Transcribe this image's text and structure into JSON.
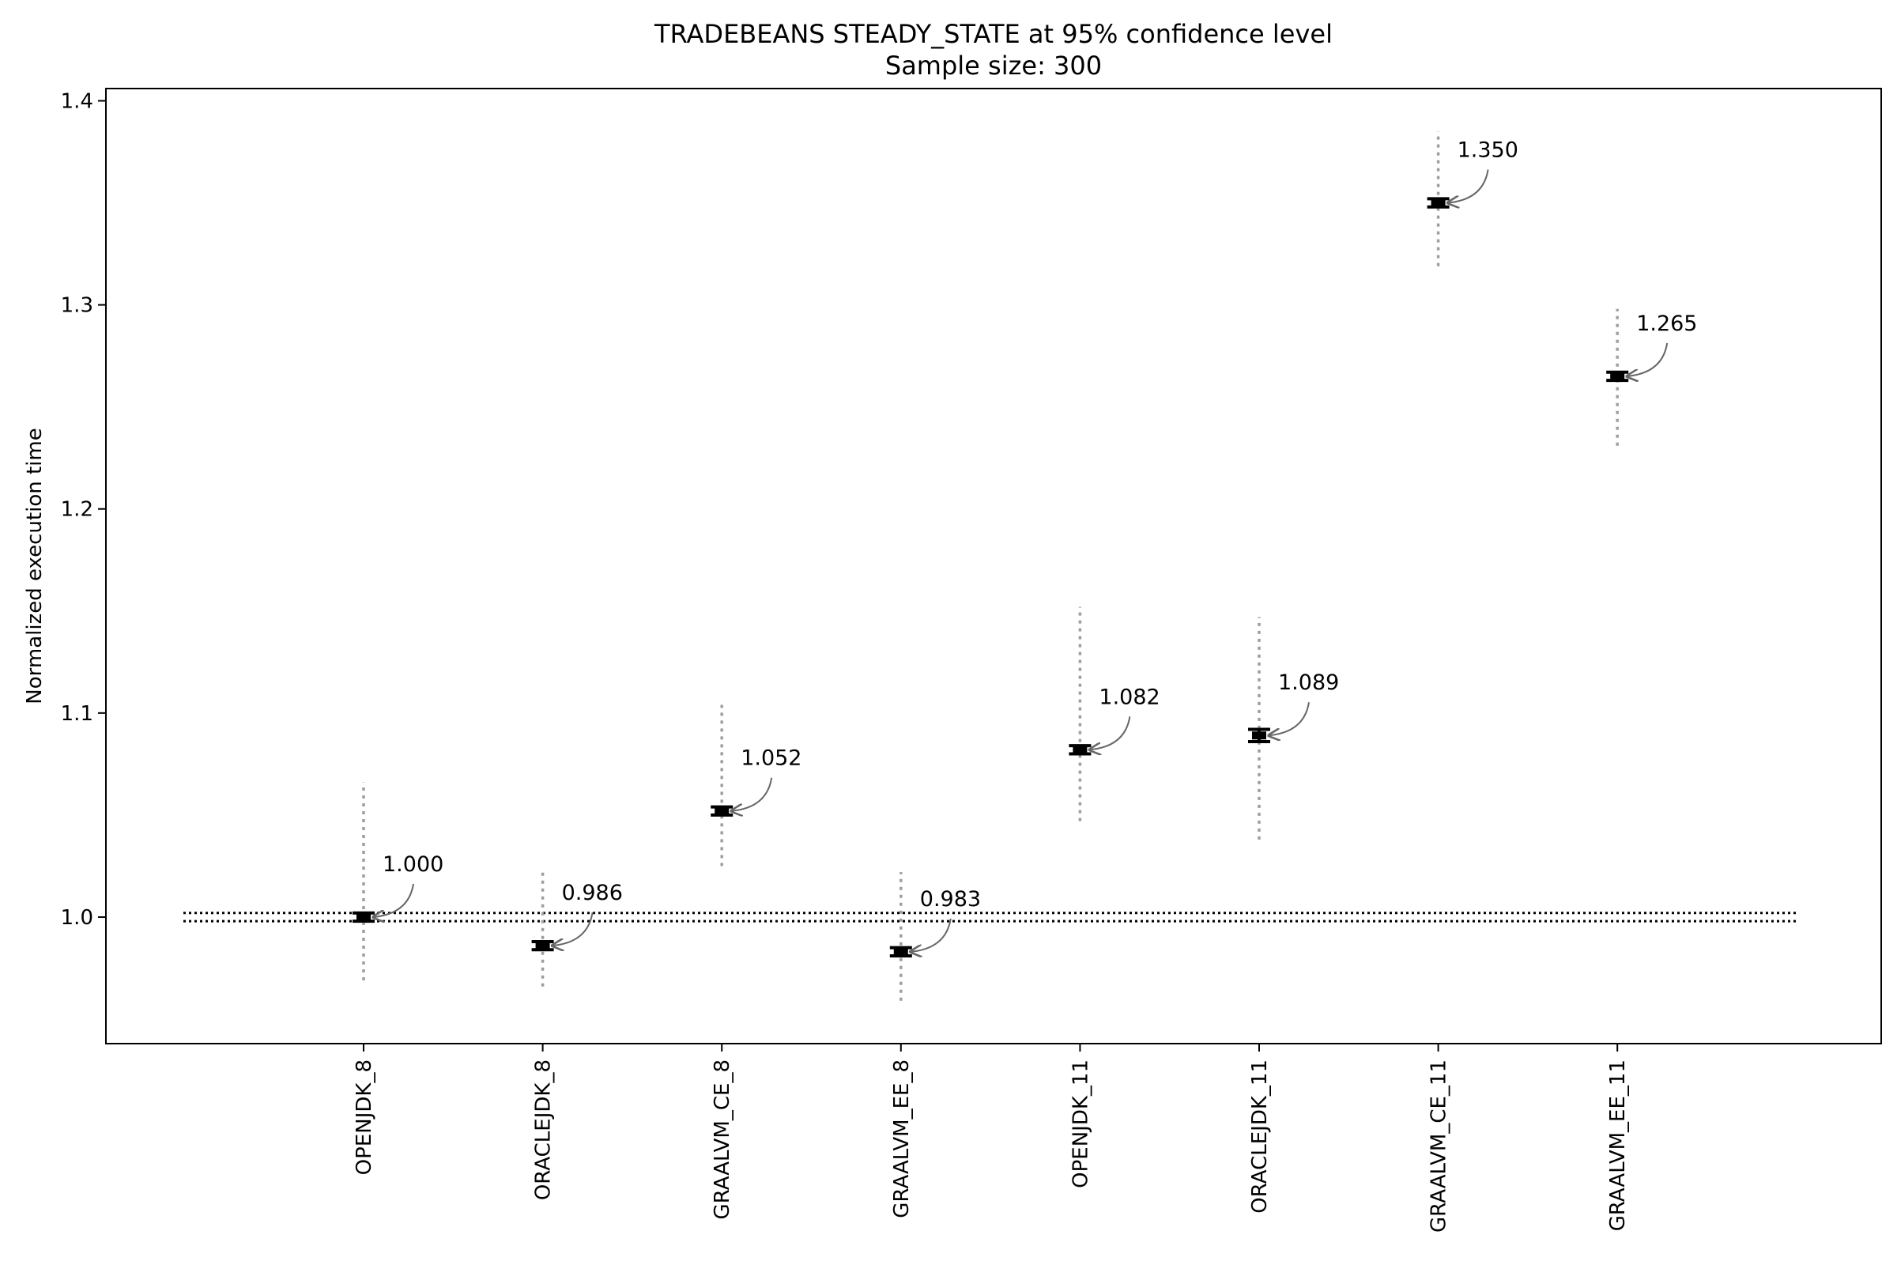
{
  "chart_data": {
    "type": "scatter",
    "title": "TRADEBEANS STEADY_STATE at 95% confidence level",
    "subtitle": "Sample size: 300",
    "xlabel": "",
    "ylabel": "Normalized execution time",
    "ylim": [
      0.938,
      1.406
    ],
    "yticks": [
      "1.0",
      "1.1",
      "1.2",
      "1.3",
      "1.4"
    ],
    "ytick_values": [
      1.0,
      1.1,
      1.2,
      1.3,
      1.4
    ],
    "categories": [
      "OPENJDK_8",
      "ORACLEJDK_8",
      "GRAALVM_CE_8",
      "GRAALVM_EE_8",
      "OPENJDK_11",
      "ORACLEJDK_11",
      "GRAALVM_CE_11",
      "GRAALVM_EE_11"
    ],
    "series": [
      {
        "values": [
          1.0,
          0.986,
          1.052,
          0.983,
          1.082,
          1.089,
          1.35,
          1.265
        ],
        "labels": [
          "1.000",
          "0.986",
          "1.052",
          "0.983",
          "1.082",
          "1.089",
          "1.350",
          "1.265"
        ],
        "ci_low": [
          0.998,
          0.984,
          1.05,
          0.981,
          1.08,
          1.086,
          1.348,
          1.263
        ],
        "ci_high": [
          1.002,
          0.988,
          1.054,
          0.985,
          1.084,
          1.092,
          1.352,
          1.267
        ],
        "range_low": [
          0.969,
          0.966,
          1.025,
          0.959,
          1.047,
          1.038,
          1.319,
          1.231
        ],
        "range_high": [
          1.066,
          1.024,
          1.104,
          1.022,
          1.152,
          1.147,
          1.385,
          1.298
        ]
      }
    ],
    "reference_band": [
      0.998,
      1.002
    ],
    "grid": false
  }
}
